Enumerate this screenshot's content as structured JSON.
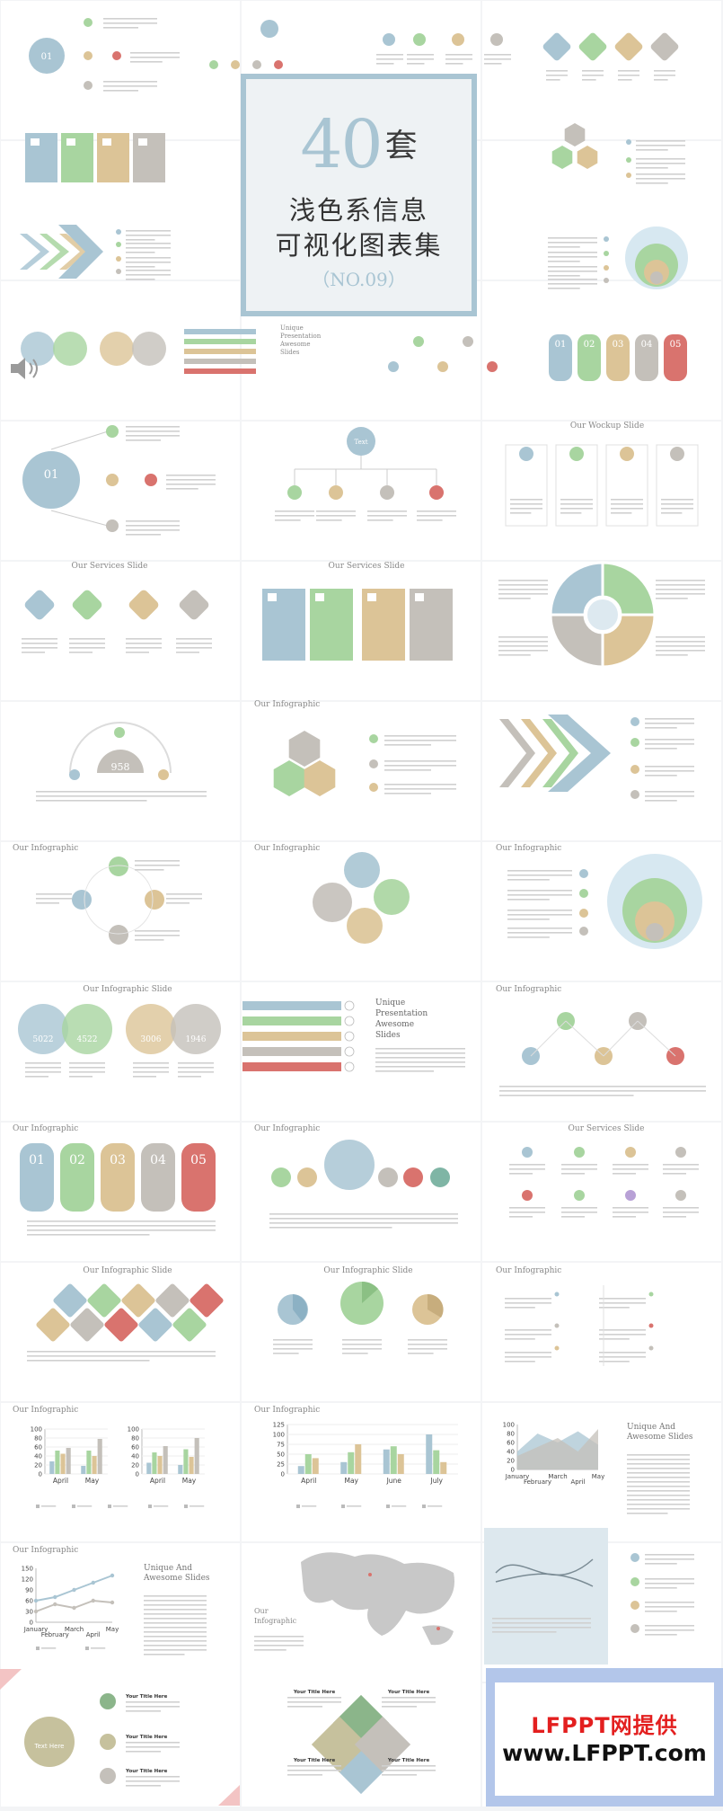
{
  "colors": {
    "blue": "#a9c5d3",
    "green": "#a8d5a0",
    "tan": "#dcc497",
    "gray": "#c4c0ba",
    "red": "#d9736e",
    "frame": "#a9c5d3",
    "watermark_frame": "#b3c6ea",
    "watermark_red": "#e31f1f"
  },
  "cover": {
    "number": "40",
    "number_suffix": "套",
    "title_line1": "浅色系信息",
    "title_line2": "可视化图表集",
    "code": "（NO.09）"
  },
  "thumbnails": {
    "titles": [
      "Our Wockup Slide",
      "Our Services Slide",
      "Our Services Slide",
      "Our Infographic",
      "Our Infographic",
      "Our Infographic",
      "Our Infographic",
      "Our Infographic Slide",
      "Our Infographic",
      "Our Infographic",
      "Our Infographic",
      "Our Services Slide",
      "Our Infographic Slide",
      "Our Infographic Slide",
      "Our Infographic",
      "Our Infographic",
      "Our Infographic",
      "Our Infographic",
      "Our Infographic"
    ],
    "unique_slides_text": [
      "Unique",
      "Presentation",
      "Awesome",
      "Slides"
    ],
    "unique_awesome_text": [
      "Unique And",
      "Awesome Slides"
    ],
    "our_infographic_text": [
      "Our",
      "Infographic"
    ],
    "number_labels": [
      "01",
      "02",
      "03",
      "04",
      "05"
    ],
    "circle_values": [
      "5022",
      "4522",
      "3006",
      "1946"
    ],
    "gauge_value": "958",
    "tree_center": "Text",
    "text_here_center": "Text Here",
    "your_title_here": "Your Title Here"
  },
  "chart_data": [
    {
      "type": "bar",
      "categories": [
        "April",
        "May"
      ],
      "ylim": [
        0,
        100
      ],
      "yticks": [
        0,
        20,
        40,
        60,
        80,
        100
      ],
      "series": [
        {
          "values": [
            28,
            18
          ]
        },
        {
          "values": [
            52,
            52
          ]
        },
        {
          "values": [
            45,
            40
          ]
        },
        {
          "values": [
            58,
            78
          ]
        }
      ]
    },
    {
      "type": "bar",
      "categories": [
        "April",
        "May"
      ],
      "ylim": [
        0,
        100
      ],
      "yticks": [
        0,
        20,
        40,
        60,
        80,
        100
      ],
      "series": [
        {
          "values": [
            25,
            20
          ]
        },
        {
          "values": [
            48,
            55
          ]
        },
        {
          "values": [
            40,
            38
          ]
        },
        {
          "values": [
            62,
            80
          ]
        }
      ]
    },
    {
      "type": "bar",
      "categories": [
        "April",
        "May",
        "June",
        "July"
      ],
      "ylim": [
        0,
        125
      ],
      "yticks": [
        0,
        25,
        50,
        75,
        100,
        125
      ],
      "series": [
        {
          "values": [
            20,
            30,
            62,
            100
          ]
        },
        {
          "values": [
            50,
            55,
            70,
            60
          ]
        },
        {
          "values": [
            40,
            75,
            50,
            30
          ]
        }
      ]
    },
    {
      "type": "area",
      "categories": [
        "January",
        "February",
        "March",
        "April",
        "May"
      ],
      "ylim": [
        0,
        100
      ],
      "yticks": [
        0,
        20,
        40,
        60,
        80,
        100
      ],
      "series": [
        {
          "values": [
            40,
            80,
            60,
            85,
            55
          ]
        },
        {
          "values": [
            30,
            50,
            70,
            40,
            90
          ]
        }
      ]
    },
    {
      "type": "line",
      "categories": [
        "January",
        "February",
        "March",
        "April",
        "May"
      ],
      "ylim": [
        0,
        150
      ],
      "yticks": [
        0,
        30,
        60,
        90,
        120,
        150
      ],
      "series": [
        {
          "values": [
            60,
            70,
            90,
            110,
            130
          ]
        },
        {
          "values": [
            30,
            50,
            40,
            60,
            55
          ]
        }
      ]
    }
  ],
  "watermark": {
    "line1": "LFPPT网提供",
    "line2": "www.LFPPT.com"
  }
}
